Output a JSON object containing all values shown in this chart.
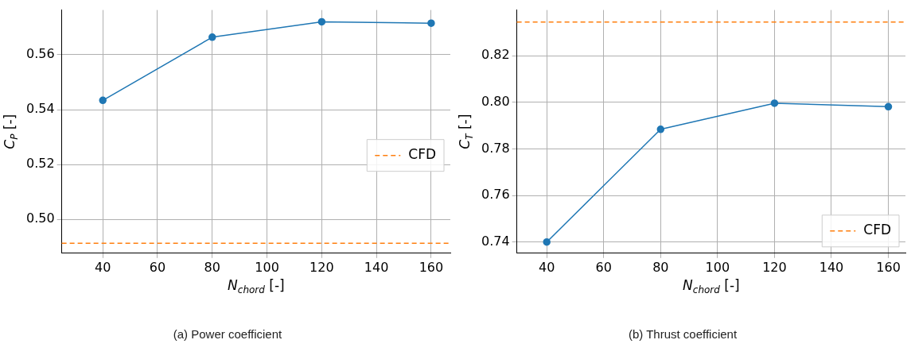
{
  "chart_data": [
    {
      "type": "line",
      "xlabel": "N$_{chord}$ [-]",
      "ylabel": "C$_{P}$ [-]",
      "x": [
        40,
        80,
        120,
        160
      ],
      "series": [
        {
          "color": "#1f77b4",
          "values": [
            0.5434,
            0.5664,
            0.572,
            0.5715
          ]
        }
      ],
      "ref_lines": [
        {
          "axis": "y",
          "value": 0.4913,
          "label": "CFD",
          "color": "#ff7f0e",
          "line_style": "dashed"
        }
      ],
      "xlim": [
        25,
        167
      ],
      "xticks": [
        40,
        60,
        80,
        100,
        120,
        140,
        160
      ],
      "ylim": [
        0.4877,
        0.5763
      ],
      "yticks": [
        {
          "value": 0.5,
          "label": "0.50"
        },
        0.52,
        0.54,
        0.56
      ],
      "grid": true,
      "legend": "right",
      "marker": "circle",
      "line_style": "solid",
      "annotations": [
        "(a) Power coefficient"
      ]
    },
    {
      "type": "line",
      "xlabel": "N$_{chord}$ [-]",
      "ylabel": "C$_{T}$ [-]",
      "x": [
        40,
        80,
        120,
        160
      ],
      "series": [
        {
          "color": "#1f77b4",
          "values": [
            0.74,
            0.7884,
            0.7996,
            0.7981
          ]
        }
      ],
      "ref_lines": [
        {
          "axis": "y",
          "value": 0.8344,
          "label": "CFD",
          "color": "#ff7f0e",
          "line_style": "dashed"
        }
      ],
      "xlim": [
        29.5,
        166
      ],
      "xticks": [
        40,
        60,
        80,
        100,
        120,
        140,
        160
      ],
      "ylim": [
        0.7352,
        0.8396
      ],
      "yticks": [
        0.74,
        0.76,
        0.78,
        {
          "value": 0.8,
          "label": "0.80"
        },
        0.82
      ],
      "grid": true,
      "legend": "bottom right",
      "marker": "circle",
      "line_style": "solid",
      "annotations": [
        "(b) Thrust coefficient"
      ]
    }
  ]
}
